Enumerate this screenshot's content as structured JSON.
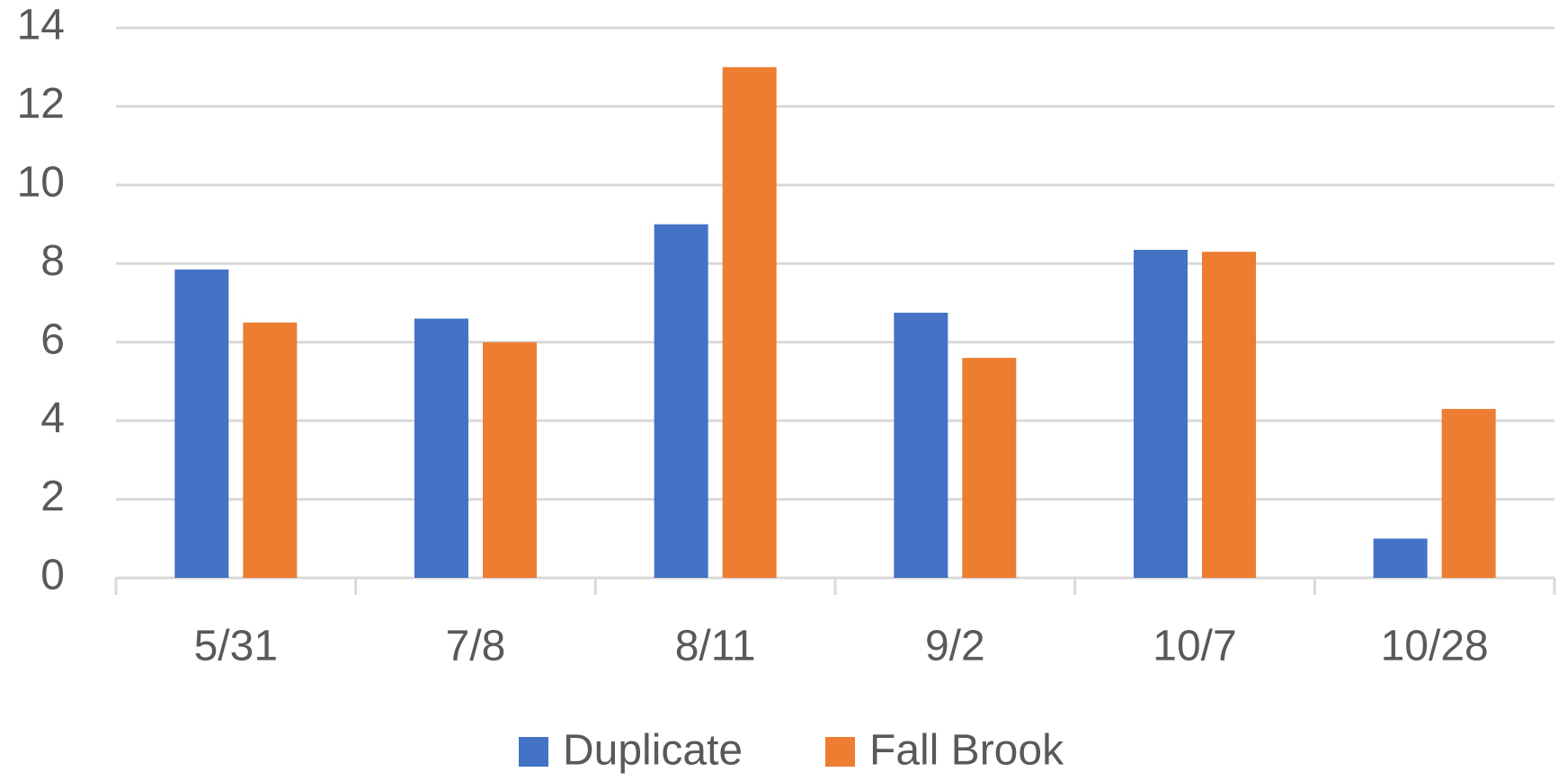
{
  "chart_data": {
    "type": "bar",
    "categories": [
      "5/31",
      "7/8",
      "8/11",
      "9/2",
      "10/7",
      "10/28"
    ],
    "series": [
      {
        "name": "Duplicate",
        "color": "#4472c4",
        "values": [
          7.85,
          6.6,
          9,
          6.75,
          8.35,
          1
        ]
      },
      {
        "name": "Fall Brook",
        "color": "#ed7d31",
        "values": [
          6.5,
          6,
          13,
          5.6,
          8.3,
          4.3
        ]
      }
    ],
    "ylim": [
      0,
      14
    ],
    "yticks": [
      0,
      2,
      4,
      6,
      8,
      10,
      12,
      14
    ],
    "grid": true,
    "legend": "bottom"
  }
}
